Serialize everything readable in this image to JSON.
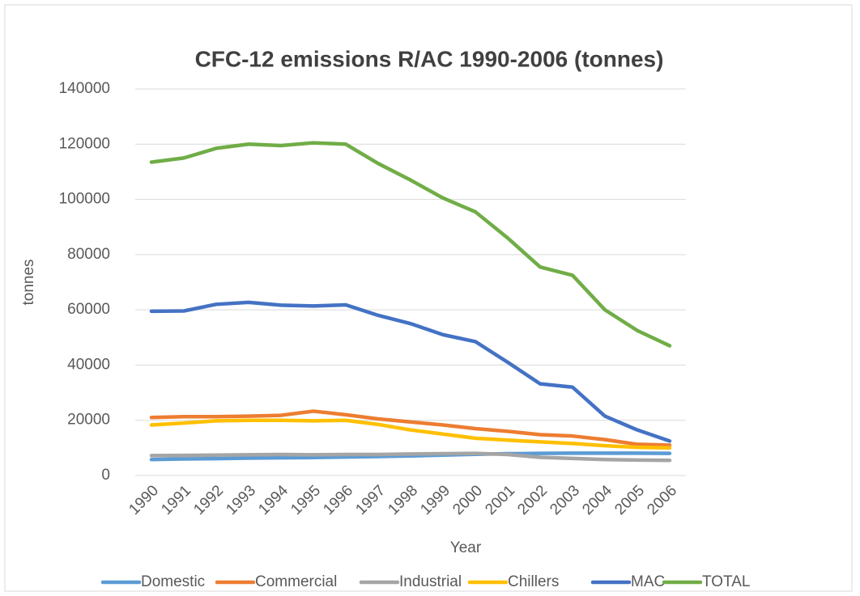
{
  "chart_data": {
    "type": "line",
    "title": "CFC-12 emissions R/AC 1990-2006 (tonnes)",
    "x_label": "Year",
    "y_label": "tonnes",
    "categories": [
      "1990",
      "1991",
      "1992",
      "1993",
      "1994",
      "1995",
      "1996",
      "1997",
      "1998",
      "1999",
      "2000",
      "2001",
      "2002",
      "2003",
      "2004",
      "2005",
      "2006"
    ],
    "series": [
      {
        "name": "Domestic",
        "color": "#5B9BD5",
        "values": [
          5800,
          6000,
          6100,
          6300,
          6400,
          6500,
          6700,
          6900,
          7100,
          7400,
          7700,
          7900,
          8000,
          8100,
          8100,
          8100,
          8000
        ]
      },
      {
        "name": "Commercial",
        "color": "#ED7D31",
        "values": [
          21000,
          21300,
          21300,
          21500,
          21800,
          23300,
          22000,
          20500,
          19400,
          18300,
          17000,
          16000,
          14800,
          14300,
          13000,
          11300,
          11000
        ]
      },
      {
        "name": "Industrial",
        "color": "#A5A5A5",
        "values": [
          7200,
          7300,
          7400,
          7500,
          7600,
          7500,
          7600,
          7600,
          7800,
          7900,
          8000,
          7600,
          6600,
          6200,
          5800,
          5600,
          5500
        ]
      },
      {
        "name": "Chillers",
        "color": "#FFC000",
        "values": [
          18300,
          19000,
          19800,
          20000,
          20000,
          19800,
          20000,
          18500,
          16500,
          15000,
          13500,
          12800,
          12200,
          11600,
          10800,
          10200,
          10000
        ]
      },
      {
        "name": "MAC",
        "color": "#4472C4",
        "values": [
          59500,
          59600,
          62000,
          62700,
          61700,
          61400,
          61800,
          58000,
          55000,
          51000,
          48500,
          41000,
          33200,
          32000,
          21500,
          16500,
          12500
        ]
      },
      {
        "name": "TOTAL",
        "color": "#70AD47",
        "values": [
          113500,
          115000,
          118500,
          120000,
          119500,
          120500,
          120000,
          113000,
          107000,
          100500,
          95500,
          86000,
          75500,
          72500,
          60000,
          52500,
          47000
        ]
      }
    ],
    "ylim": [
      0,
      140000
    ],
    "yticks": [
      0,
      20000,
      40000,
      60000,
      80000,
      100000,
      120000,
      140000
    ],
    "grid": true,
    "legend": "bottom"
  }
}
